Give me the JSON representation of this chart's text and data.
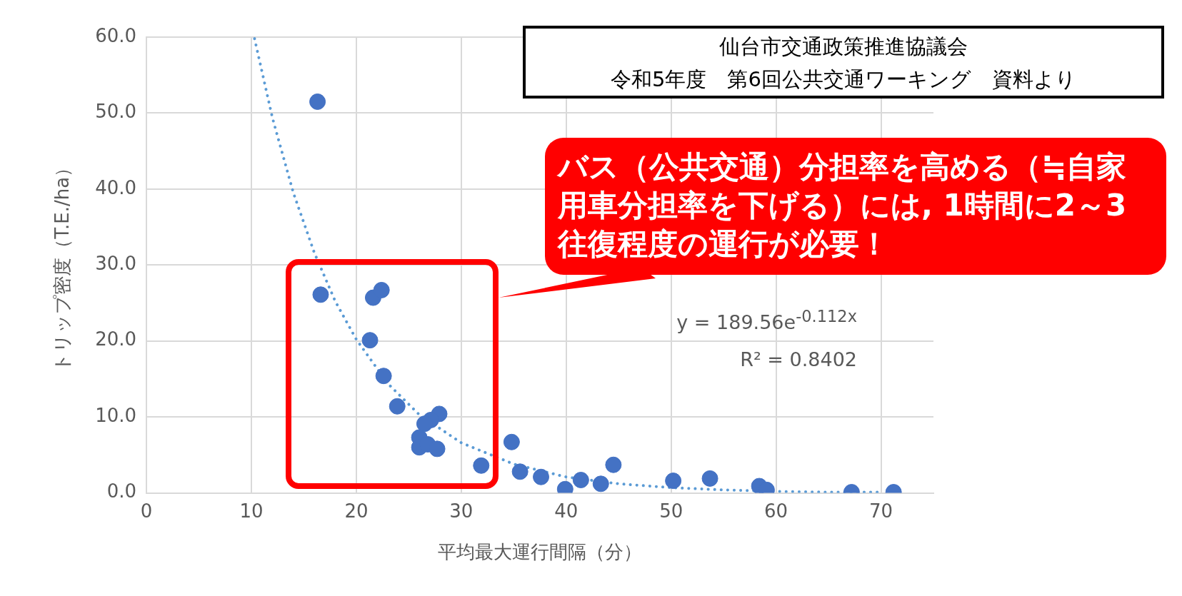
{
  "chart_data": {
    "type": "scatter",
    "xlabel": "平均最大運行間隔（分）",
    "ylabel": "トリップ密度（T.E./ha）",
    "xlim": [
      0,
      75
    ],
    "xticks": [
      0,
      10,
      20,
      30,
      40,
      50,
      60,
      70
    ],
    "ylim": [
      0,
      60
    ],
    "yticks": [
      {
        "value": 0,
        "label": "0.0"
      },
      {
        "value": 10,
        "label": "10.0"
      },
      {
        "value": 20,
        "label": "20.0"
      },
      {
        "value": 30,
        "label": "30.0"
      },
      {
        "value": 40,
        "label": "40.0"
      },
      {
        "value": 50,
        "label": "50.0"
      },
      {
        "value": 60,
        "label": "60.0"
      }
    ],
    "grid": true,
    "legend": false,
    "marker": "circle",
    "series": [
      {
        "type": "scatter",
        "color": "#4472c4",
        "x": [
          16.3,
          16.6,
          21.6,
          22.4,
          21.3,
          22.6,
          23.9,
          27.9,
          27.1,
          26.5,
          26.0,
          26.0,
          26.8,
          27.7,
          31.9,
          34.8,
          35.6,
          37.6,
          39.9,
          41.4,
          43.3,
          44.5,
          50.2,
          53.7,
          58.4,
          59.1,
          67.2,
          71.2
        ],
        "values": [
          51.5,
          26.1,
          25.7,
          26.7,
          20.1,
          15.4,
          11.4,
          10.4,
          9.6,
          9.1,
          7.3,
          6.0,
          6.4,
          5.8,
          3.6,
          6.7,
          2.8,
          2.1,
          0.5,
          1.7,
          1.2,
          3.7,
          1.6,
          1.9,
          0.9,
          0.4,
          0.1,
          0.1
        ]
      },
      {
        "type": "line",
        "color": "#5b9bd5",
        "line_style": "dotted",
        "marker": "none",
        "x": [
          10.3,
          12,
          14,
          16,
          18,
          20,
          23,
          26,
          30,
          35,
          40,
          45,
          50,
          55,
          60,
          65,
          70
        ],
        "values": [
          59.8,
          49.4,
          39.5,
          31.6,
          25.2,
          20.2,
          14.4,
          10.3,
          6.6,
          3.8,
          2.1,
          1.2,
          0.7,
          0.4,
          0.2,
          0.1,
          0.1
        ]
      }
    ],
    "annotations": [
      "仙台市交通政策推進協議会",
      "令和5年度　第6回公共交通ワーキング　資料より",
      "バス（公共交通）分担率を高める（≒自家用車分担率を下げる）には, 1時間に2～3往復程度の運行が必要！",
      "y = 189.56e$^{-0.112x}$",
      "R² = 0.8402"
    ]
  }
}
